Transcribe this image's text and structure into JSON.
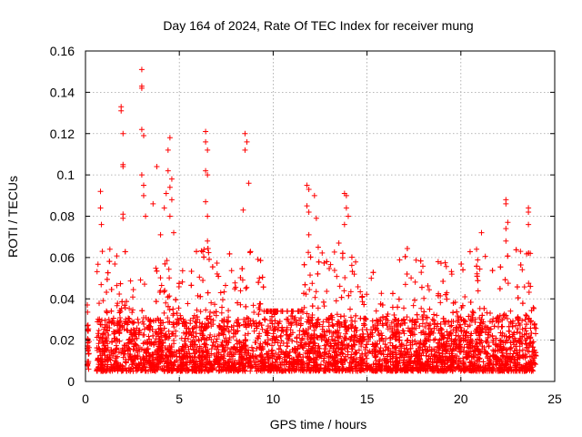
{
  "chart_data": {
    "type": "scatter",
    "title": "Day 164 of 2024, Rate Of TEC Index for receiver mung",
    "xlabel": "GPS time / hours",
    "ylabel": "ROTI / TECUs",
    "xlim": [
      0,
      25
    ],
    "ylim": [
      0,
      0.16
    ],
    "xticks": [
      0,
      5,
      10,
      15,
      20,
      25
    ],
    "xtick_labels": [
      "0",
      "5",
      "10",
      "15",
      "20",
      "25"
    ],
    "yticks": [
      0,
      0.02,
      0.04,
      0.06,
      0.08,
      0.1,
      0.12,
      0.14,
      0.16
    ],
    "ytick_labels": [
      "0",
      "0.02",
      "0.04",
      "0.06",
      "0.08",
      "0.1",
      "0.12",
      "0.14",
      "0.16"
    ],
    "grid": true,
    "marker": "+",
    "series": [
      {
        "name": "ROTI",
        "color": "#ff0000",
        "x_range": [
          0,
          24
        ],
        "baseline_band": [
          0.005,
          0.03
        ],
        "notable_points": [
          {
            "x": 0.1,
            "y": 0.037
          },
          {
            "x": 0.1,
            "y": 0.027
          },
          {
            "x": 0.1,
            "y": 0.016
          },
          {
            "x": 0.1,
            "y": 0.008
          },
          {
            "x": 0.8,
            "y": 0.092
          },
          {
            "x": 0.8,
            "y": 0.084
          },
          {
            "x": 0.85,
            "y": 0.076
          },
          {
            "x": 0.9,
            "y": 0.063
          },
          {
            "x": 1.3,
            "y": 0.064
          },
          {
            "x": 1.9,
            "y": 0.133
          },
          {
            "x": 1.9,
            "y": 0.131
          },
          {
            "x": 2.0,
            "y": 0.12
          },
          {
            "x": 2.0,
            "y": 0.105
          },
          {
            "x": 2.0,
            "y": 0.104
          },
          {
            "x": 2.0,
            "y": 0.081
          },
          {
            "x": 2.0,
            "y": 0.079
          },
          {
            "x": 3.0,
            "y": 0.151
          },
          {
            "x": 3.0,
            "y": 0.143
          },
          {
            "x": 3.0,
            "y": 0.142
          },
          {
            "x": 3.0,
            "y": 0.122
          },
          {
            "x": 3.1,
            "y": 0.119
          },
          {
            "x": 3.0,
            "y": 0.1
          },
          {
            "x": 3.1,
            "y": 0.095
          },
          {
            "x": 3.1,
            "y": 0.09
          },
          {
            "x": 3.2,
            "y": 0.08
          },
          {
            "x": 3.6,
            "y": 0.086
          },
          {
            "x": 3.8,
            "y": 0.104
          },
          {
            "x": 4.5,
            "y": 0.118
          },
          {
            "x": 4.4,
            "y": 0.112
          },
          {
            "x": 4.4,
            "y": 0.102
          },
          {
            "x": 4.6,
            "y": 0.098
          },
          {
            "x": 4.5,
            "y": 0.094
          },
          {
            "x": 4.3,
            "y": 0.091
          },
          {
            "x": 4.6,
            "y": 0.088
          },
          {
            "x": 4.2,
            "y": 0.084
          },
          {
            "x": 4.5,
            "y": 0.08
          },
          {
            "x": 4.0,
            "y": 0.071
          },
          {
            "x": 4.7,
            "y": 0.072
          },
          {
            "x": 6.4,
            "y": 0.121
          },
          {
            "x": 6.4,
            "y": 0.116
          },
          {
            "x": 6.5,
            "y": 0.112
          },
          {
            "x": 6.4,
            "y": 0.102
          },
          {
            "x": 6.5,
            "y": 0.1
          },
          {
            "x": 6.4,
            "y": 0.087
          },
          {
            "x": 6.5,
            "y": 0.08
          },
          {
            "x": 6.5,
            "y": 0.068
          },
          {
            "x": 8.5,
            "y": 0.12
          },
          {
            "x": 8.6,
            "y": 0.116
          },
          {
            "x": 8.5,
            "y": 0.112
          },
          {
            "x": 8.7,
            "y": 0.096
          },
          {
            "x": 8.4,
            "y": 0.083
          },
          {
            "x": 11.8,
            "y": 0.095
          },
          {
            "x": 11.9,
            "y": 0.093
          },
          {
            "x": 12.2,
            "y": 0.09
          },
          {
            "x": 11.8,
            "y": 0.085
          },
          {
            "x": 11.9,
            "y": 0.082
          },
          {
            "x": 12.3,
            "y": 0.079
          },
          {
            "x": 11.9,
            "y": 0.071
          },
          {
            "x": 12.4,
            "y": 0.065
          },
          {
            "x": 13.8,
            "y": 0.091
          },
          {
            "x": 13.9,
            "y": 0.09
          },
          {
            "x": 13.9,
            "y": 0.084
          },
          {
            "x": 14.0,
            "y": 0.08
          },
          {
            "x": 13.8,
            "y": 0.076
          },
          {
            "x": 13.5,
            "y": 0.067
          },
          {
            "x": 22.4,
            "y": 0.088
          },
          {
            "x": 22.4,
            "y": 0.086
          },
          {
            "x": 22.5,
            "y": 0.077
          },
          {
            "x": 22.4,
            "y": 0.074
          },
          {
            "x": 22.4,
            "y": 0.068
          },
          {
            "x": 21.1,
            "y": 0.072
          },
          {
            "x": 23.6,
            "y": 0.084
          },
          {
            "x": 23.6,
            "y": 0.082
          },
          {
            "x": 23.6,
            "y": 0.076
          },
          {
            "x": 23.7,
            "y": 0.062
          }
        ]
      }
    ]
  },
  "colors": {
    "marker": "#ff0000",
    "grid": "#a0a0a0",
    "axes": "#000000",
    "background": "#ffffff"
  }
}
